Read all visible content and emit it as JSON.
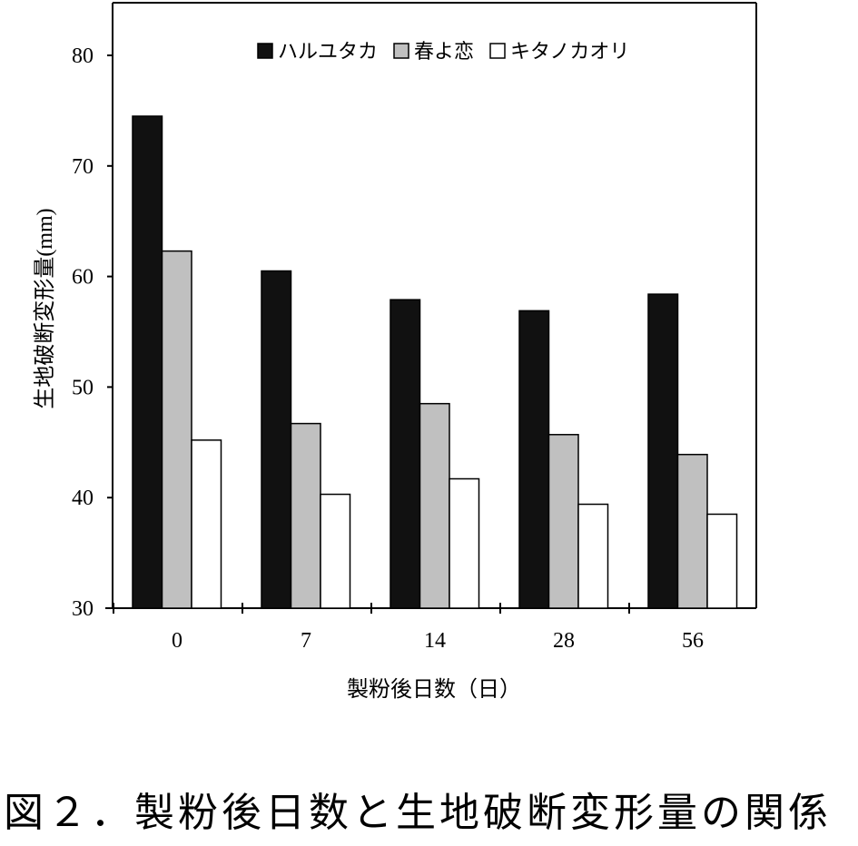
{
  "chart_data": {
    "type": "bar",
    "categories": [
      "0",
      "7",
      "14",
      "28",
      "56"
    ],
    "series": [
      {
        "name": "ハルユタカ",
        "values": [
          74.5,
          60.5,
          57.9,
          56.9,
          58.4
        ],
        "color": "#111111"
      },
      {
        "name": "春よ恋",
        "values": [
          62.3,
          46.7,
          48.5,
          45.7,
          43.9
        ],
        "color": "#c0c0c0"
      },
      {
        "name": "キタノカオリ",
        "values": [
          45.2,
          40.3,
          41.7,
          39.4,
          38.5
        ],
        "color": "#ffffff"
      }
    ],
    "ylim": [
      30,
      85
    ],
    "yticks": [
      30,
      40,
      50,
      60,
      70,
      80
    ],
    "ylabel": "生地破断変形量(mm)",
    "xlabel": "製粉後日数（日）",
    "legend_position": "top-center",
    "grid": false
  },
  "caption": "図２．製粉後日数と生地破断変形量の関係"
}
